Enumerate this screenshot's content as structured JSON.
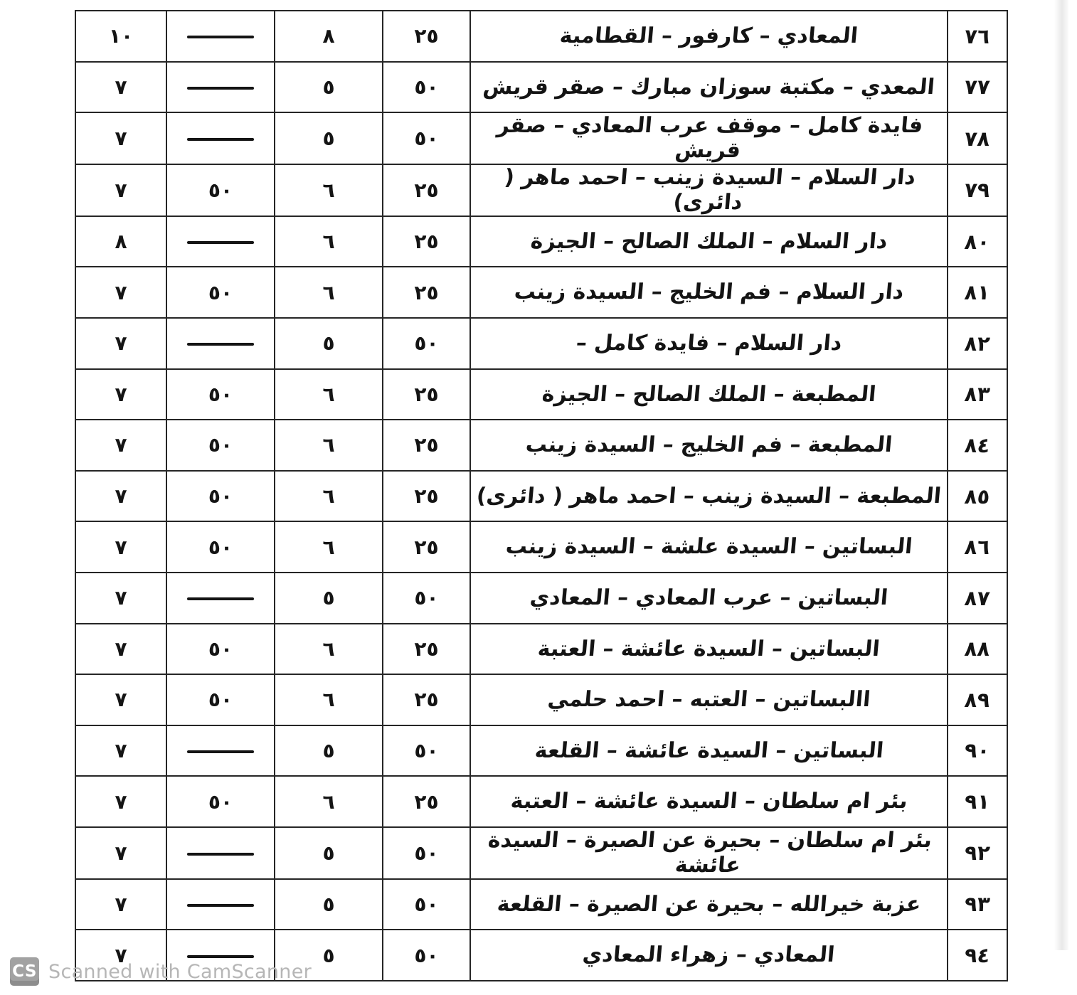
{
  "watermark": {
    "logo": "CS",
    "text": "Scanned with CamScanner"
  },
  "colors": {
    "ink": "#141414",
    "paper": "#ffffff",
    "border": "#262626",
    "watermark_gray": "#b6b6b6",
    "logo_gray": "#a2a2a2"
  },
  "table": {
    "direction": "rtl",
    "dash_symbol": "—",
    "rows": [
      {
        "no": "٧٦",
        "route": "المعادي – كارفور – القطامية",
        "n1": "٢٥",
        "n2": "٨",
        "n3": "—",
        "n4": "١٠"
      },
      {
        "no": "٧٧",
        "route": "المعدي – مكتبة سوزان مبارك – صقر قريش",
        "n1": "٥٠",
        "n2": "٥",
        "n3": "—",
        "n4": "٧"
      },
      {
        "no": "٧٨",
        "route": "فايدة كامل – موقف عرب المعادي – صقر قريش",
        "n1": "٥٠",
        "n2": "٥",
        "n3": "—",
        "n4": "٧"
      },
      {
        "no": "٧٩",
        "route": "دار السلام – السيدة زينب – احمد ماهر ( دائرى)",
        "n1": "٢٥",
        "n2": "٦",
        "n3": "٥٠",
        "n4": "٧"
      },
      {
        "no": "٨٠",
        "route": "دار السلام – الملك الصالح – الجيزة",
        "n1": "٢٥",
        "n2": "٦",
        "n3": "—",
        "n4": "٨"
      },
      {
        "no": "٨١",
        "route": "دار السلام – فم الخليج – السيدة زينب",
        "n1": "٢٥",
        "n2": "٦",
        "n3": "٥٠",
        "n4": "٧"
      },
      {
        "no": "٨٢",
        "route": "دار السلام – فايدة كامل –",
        "n1": "٥٠",
        "n2": "٥",
        "n3": "—",
        "n4": "٧"
      },
      {
        "no": "٨٣",
        "route": "المطبعة – الملك الصالح – الجيزة",
        "n1": "٢٥",
        "n2": "٦",
        "n3": "٥٠",
        "n4": "٧"
      },
      {
        "no": "٨٤",
        "route": "المطبعة – فم الخليج – السيدة زينب",
        "n1": "٢٥",
        "n2": "٦",
        "n3": "٥٠",
        "n4": "٧"
      },
      {
        "no": "٨٥",
        "route": "المطبعة – السيدة زينب – احمد ماهر ( دائرى)",
        "n1": "٢٥",
        "n2": "٦",
        "n3": "٥٠",
        "n4": "٧"
      },
      {
        "no": "٨٦",
        "route": "البساتين – السيدة علشة – السيدة زينب",
        "n1": "٢٥",
        "n2": "٦",
        "n3": "٥٠",
        "n4": "٧"
      },
      {
        "no": "٨٧",
        "route": "البساتين – عرب المعادي – المعادي",
        "n1": "٥٠",
        "n2": "٥",
        "n3": "—",
        "n4": "٧"
      },
      {
        "no": "٨٨",
        "route": "البساتين – السيدة عائشة – العتبة",
        "n1": "٢٥",
        "n2": "٦",
        "n3": "٥٠",
        "n4": "٧"
      },
      {
        "no": "٨٩",
        "route": "االبساتين – العتبه – احمد حلمي",
        "n1": "٢٥",
        "n2": "٦",
        "n3": "٥٠",
        "n4": "٧"
      },
      {
        "no": "٩٠",
        "route": "البساتين – السيدة عائشة – القلعة",
        "n1": "٥٠",
        "n2": "٥",
        "n3": "—",
        "n4": "٧"
      },
      {
        "no": "٩١",
        "route": "بئر ام سلطان – السيدة عائشة – العتبة",
        "n1": "٢٥",
        "n2": "٦",
        "n3": "٥٠",
        "n4": "٧"
      },
      {
        "no": "٩٢",
        "route": "بئر ام سلطان – بحيرة عن الصيرة – السيدة عائشة",
        "n1": "٥٠",
        "n2": "٥",
        "n3": "—",
        "n4": "٧"
      },
      {
        "no": "٩٣",
        "route": "عزبة خيرالله – بحيرة عن الصيرة – القلعة",
        "n1": "٥٠",
        "n2": "٥",
        "n3": "—",
        "n4": "٧"
      },
      {
        "no": "٩٤",
        "route": "المعادي – زهراء المعادي",
        "n1": "٥٠",
        "n2": "٥",
        "n3": "—",
        "n4": "٧"
      }
    ]
  }
}
